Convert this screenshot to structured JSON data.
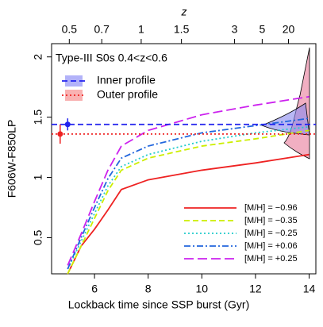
{
  "chart_data": {
    "type": "line",
    "title": "Type-III S0s 0.4<z<0.6",
    "xlabel": "Lockback time since SSP burst (Gyr)",
    "ylabel": "F606W-F850LP",
    "top_axis_label": "z",
    "xlim": [
      4.4,
      14.25
    ],
    "ylim": [
      0.2,
      2.11
    ],
    "xticks": [
      6,
      8,
      10,
      12,
      14
    ],
    "yticks": [
      0.5,
      1.0,
      1.5,
      2.0
    ],
    "top_ticks": [
      {
        "value": 5.06,
        "label": "0.5"
      },
      {
        "value": 6.27,
        "label": "0.7"
      },
      {
        "value": 7.74,
        "label": "1"
      },
      {
        "value": 9.24,
        "label": "1.5"
      },
      {
        "value": 11.22,
        "label": "3"
      },
      {
        "value": 12.25,
        "label": "5"
      },
      {
        "value": 13.23,
        "label": "20"
      }
    ],
    "x": [
      5.0,
      5.5,
      6.0,
      6.5,
      7.0,
      8.0,
      10.0,
      12.0,
      14.0
    ],
    "series": [
      {
        "name": "[M/H] = −0.96",
        "color": "#ee2222",
        "style": "solid",
        "values": [
          0.2,
          0.43,
          0.57,
          0.73,
          0.9,
          0.98,
          1.06,
          1.12,
          1.19
        ]
      },
      {
        "name": "[M/H] = −0.35",
        "color": "#ccee00",
        "style": "dashed",
        "values": [
          0.2,
          0.43,
          0.66,
          0.89,
          1.06,
          1.16,
          1.26,
          1.32,
          1.39
        ]
      },
      {
        "name": "[M/H] = −0.25",
        "color": "#22cccc",
        "style": "dotted",
        "values": [
          0.24,
          0.47,
          0.7,
          0.93,
          1.09,
          1.19,
          1.3,
          1.37,
          1.42
        ]
      },
      {
        "name": "[M/H] = +0.06",
        "color": "#2266dd",
        "style": "dashdot",
        "values": [
          0.24,
          0.5,
          0.75,
          0.99,
          1.16,
          1.26,
          1.37,
          1.43,
          1.49
        ]
      },
      {
        "name": "[M/H] = +0.25",
        "color": "#cc22ee",
        "style": "longdash",
        "values": [
          0.27,
          0.53,
          0.8,
          1.06,
          1.26,
          1.39,
          1.52,
          1.6,
          1.67
        ]
      }
    ],
    "profiles": [
      {
        "name": "Inner profile",
        "color": "#2222ee",
        "style": "dashed",
        "x": 5.0,
        "value": 1.44,
        "error": 0.05
      },
      {
        "name": "Outer profile",
        "color": "#ee2222",
        "style": "dotted",
        "x": 4.72,
        "value": 1.36,
        "error": 0.08
      }
    ]
  }
}
